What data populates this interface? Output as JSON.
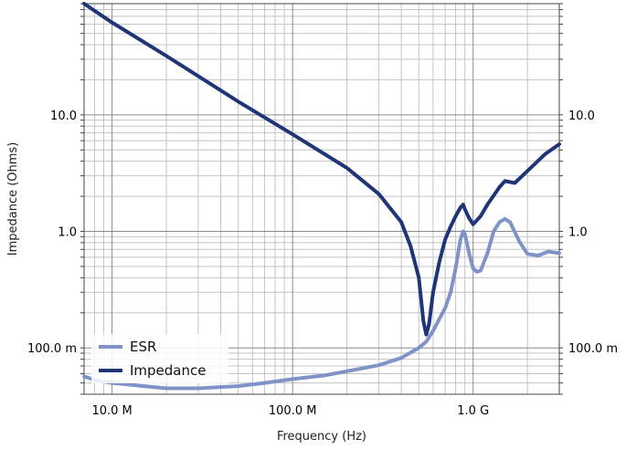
{
  "chart_data": {
    "type": "line",
    "xscale": "log",
    "yscale": "log",
    "xlabel": "Frequency (Hz)",
    "ylabel": "Impedance (Ohms)",
    "xlim": [
      7000000,
      3000000000
    ],
    "ylim": [
      0.04,
      90
    ],
    "grid": true,
    "legend_position": "bottom-left",
    "x_ticks": [
      {
        "value": 10000000,
        "label": "10.0 M"
      },
      {
        "value": 100000000,
        "label": "100.0 M"
      },
      {
        "value": 1000000000,
        "label": "1.0 G"
      }
    ],
    "y_ticks": [
      {
        "value": 0.1,
        "label": "100.0 m"
      },
      {
        "value": 1,
        "label": "1.0"
      },
      {
        "value": 10,
        "label": "10.0"
      }
    ],
    "series": [
      {
        "name": "ESR",
        "color": "#8093c8",
        "x": [
          7000000,
          8000000,
          10000000,
          15000000,
          20000000,
          30000000,
          50000000,
          70000000,
          100000000,
          150000000,
          200000000,
          300000000,
          400000000,
          500000000,
          550000000,
          600000000,
          700000000,
          750000000,
          800000000,
          850000000,
          880000000,
          900000000,
          950000000,
          1000000000,
          1050000000,
          1100000000,
          1200000000,
          1300000000,
          1400000000,
          1500000000,
          1600000000,
          1800000000,
          2000000000,
          2300000000,
          2600000000,
          3000000000
        ],
        "values": [
          0.057,
          0.053,
          0.05,
          0.047,
          0.045,
          0.045,
          0.047,
          0.05,
          0.054,
          0.058,
          0.063,
          0.071,
          0.082,
          0.1,
          0.113,
          0.14,
          0.22,
          0.3,
          0.48,
          0.85,
          1.0,
          0.95,
          0.65,
          0.48,
          0.45,
          0.46,
          0.65,
          1.0,
          1.2,
          1.28,
          1.2,
          0.82,
          0.64,
          0.62,
          0.67,
          0.65
        ]
      },
      {
        "name": "Impedance",
        "color": "#1f3578",
        "x": [
          7000000,
          10000000,
          20000000,
          50000000,
          100000000,
          200000000,
          300000000,
          400000000,
          450000000,
          500000000,
          530000000,
          550000000,
          570000000,
          600000000,
          650000000,
          700000000,
          750000000,
          800000000,
          850000000,
          880000000,
          900000000,
          950000000,
          1000000000,
          1100000000,
          1200000000,
          1400000000,
          1500000000,
          1700000000,
          2000000000,
          2500000000,
          3000000000
        ],
        "values": [
          90,
          62,
          32,
          13,
          6.8,
          3.5,
          2.1,
          1.2,
          0.75,
          0.4,
          0.17,
          0.13,
          0.16,
          0.3,
          0.55,
          0.85,
          1.1,
          1.35,
          1.6,
          1.7,
          1.55,
          1.3,
          1.15,
          1.35,
          1.7,
          2.4,
          2.7,
          2.6,
          3.3,
          4.6,
          5.6
        ]
      }
    ]
  }
}
